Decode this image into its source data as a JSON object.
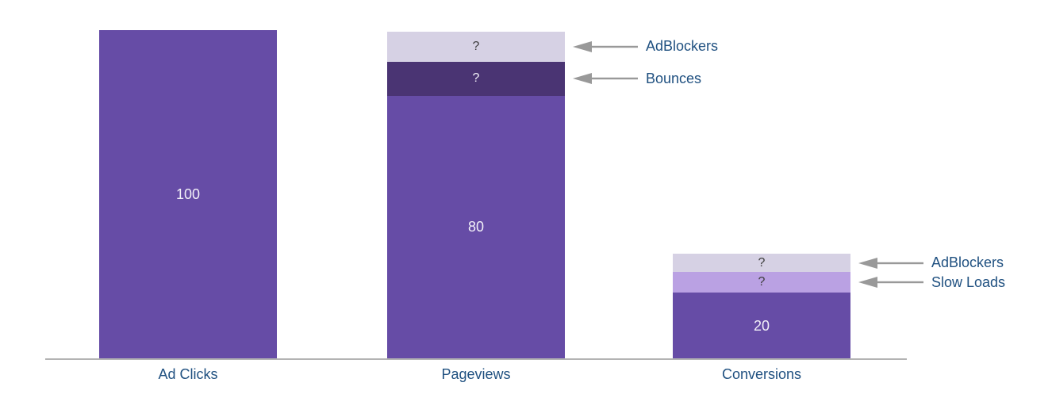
{
  "chart_data": {
    "type": "bar",
    "subtype": "stacked_funnel",
    "title": "",
    "xlabel": "",
    "ylabel": "",
    "ylim": [
      0,
      100
    ],
    "grid": false,
    "y_axis_visible": false,
    "legend": "none (arrow annotations instead)",
    "categories": [
      "Ad Clicks",
      "Pageviews",
      "Conversions"
    ],
    "bars": [
      {
        "category": "Ad Clicks",
        "segments": [
          {
            "name": "Ad Clicks",
            "value": 100,
            "display_label": "100",
            "estimated_units": 100,
            "color": "main_purple",
            "label_color": "light"
          }
        ]
      },
      {
        "category": "Pageviews",
        "segments": [
          {
            "name": "AdBlockers",
            "value": "?",
            "display_label": "?",
            "estimated_units": 9.2,
            "color": "lavender",
            "label_color": "dark"
          },
          {
            "name": "Bounces",
            "value": "?",
            "display_label": "?",
            "estimated_units": 10.4,
            "color": "dark_purple",
            "label_color": "light"
          },
          {
            "name": "Pageviews",
            "value": 80,
            "display_label": "80",
            "estimated_units": 80,
            "color": "main_purple",
            "label_color": "light"
          }
        ]
      },
      {
        "category": "Conversions",
        "segments": [
          {
            "name": "AdBlockers",
            "value": "?",
            "display_label": "?",
            "estimated_units": 5.6,
            "color": "lavender",
            "label_color": "dark"
          },
          {
            "name": "Slow Loads",
            "value": "?",
            "display_label": "?",
            "estimated_units": 6.3,
            "color": "light_purple",
            "label_color": "dark"
          },
          {
            "name": "Conversions",
            "value": 20,
            "display_label": "20",
            "estimated_units": 20,
            "color": "main_purple",
            "label_color": "light"
          }
        ]
      }
    ],
    "annotations": [
      {
        "text": "AdBlockers",
        "bar": 1,
        "segment": 0
      },
      {
        "text": "Bounces",
        "bar": 1,
        "segment": 1
      },
      {
        "text": "AdBlockers",
        "bar": 2,
        "segment": 0
      },
      {
        "text": "Slow Loads",
        "bar": 2,
        "segment": 1
      }
    ],
    "colors": {
      "main_purple": "#664ca6",
      "dark_purple": "#4a3473",
      "lavender": "#d6d1e4",
      "light_purple": "#baa1e3",
      "arrow_gray": "#999999",
      "axis_gray": "#b3b3b3",
      "category_label_blue": "#1f5080",
      "value_light": "#f2f0f8",
      "value_dark": "#3d3d3d"
    }
  }
}
